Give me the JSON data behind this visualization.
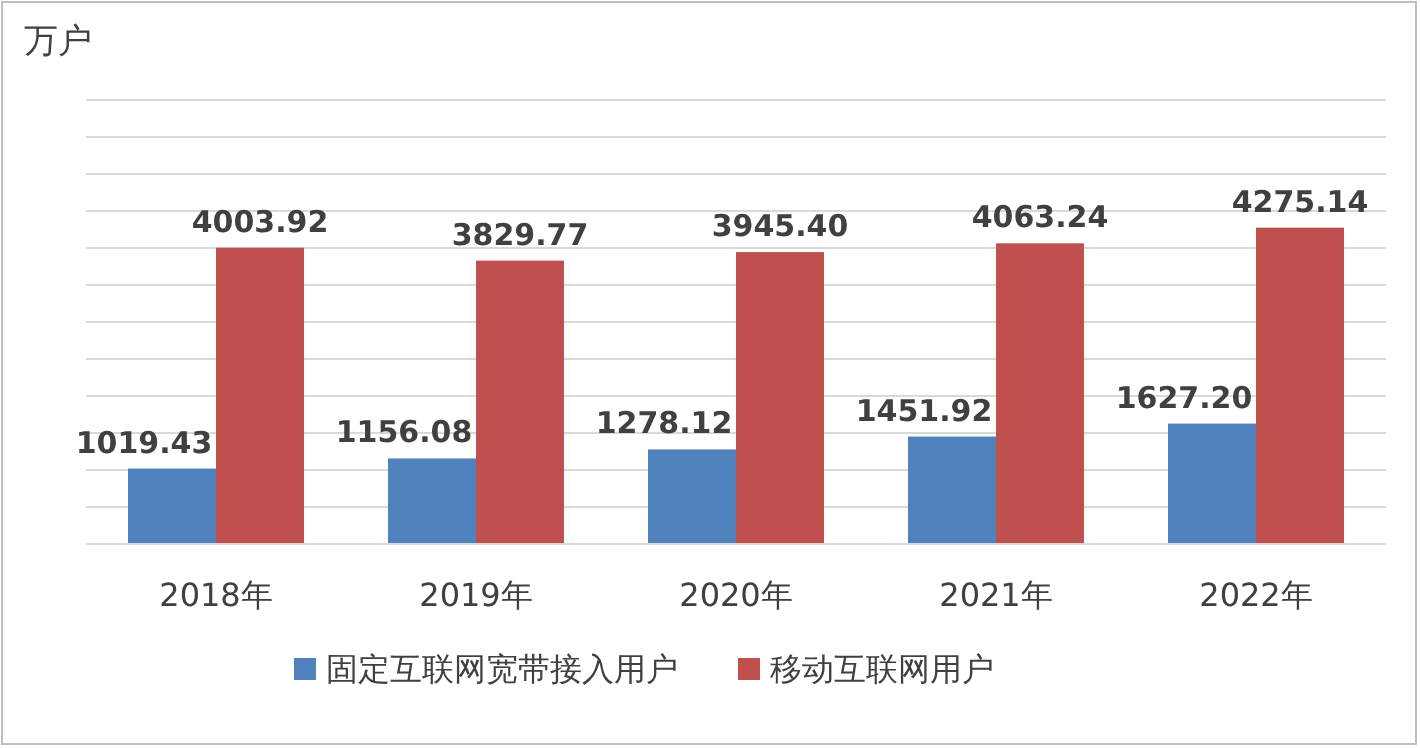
{
  "chart_data": {
    "type": "bar",
    "ylabel": "万户",
    "categories": [
      "2018年",
      "2019年",
      "2020年",
      "2021年",
      "2022年"
    ],
    "series": [
      {
        "name": "固定互联网宽带接入用户",
        "color": "#4f81bd",
        "values": [
          1019.43,
          1156.08,
          1278.12,
          1451.92,
          1627.2
        ],
        "value_labels": [
          "1019.43",
          "1156.08",
          "1278.12",
          "1451.92",
          "1627.20"
        ]
      },
      {
        "name": "移动互联网用户",
        "color": "#c0504d",
        "values": [
          4003.92,
          3829.77,
          3945.4,
          4063.24,
          4275.14
        ],
        "value_labels": [
          "4003.92",
          "3829.77",
          "3945.40",
          "4063.24",
          "4275.14"
        ]
      }
    ],
    "legend": "bottom",
    "grid": "y",
    "tick_labels": "x",
    "ylim": [
      0,
      6000
    ],
    "yticks": [
      {
        "value": 0,
        "label": null
      },
      {
        "value": 500,
        "label": null
      },
      {
        "value": 1000,
        "label": null
      },
      {
        "value": 1500,
        "label": null
      },
      {
        "value": 2000,
        "label": null
      },
      {
        "value": 2500,
        "label": null
      },
      {
        "value": 3000,
        "label": null
      },
      {
        "value": 3500,
        "label": null
      },
      {
        "value": 4000,
        "label": null
      },
      {
        "value": 4500,
        "label": null
      },
      {
        "value": 5000,
        "label": null
      },
      {
        "value": 5500,
        "label": null
      },
      {
        "value": 6000,
        "label": null
      }
    ]
  }
}
